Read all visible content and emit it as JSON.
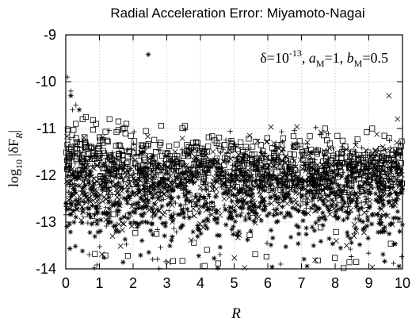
{
  "chart_data": {
    "type": "scatter",
    "title": "Radial Acceleration Error: Miyamoto-Nagai",
    "xlabel": "R",
    "ylabel_base": "log",
    "ylabel_sub": "10",
    "ylabel_abs": "|δF",
    "ylabel_abs_sub": "R",
    "ylabel_close": "|",
    "annotation": {
      "delta": "δ=10",
      "delta_exp": "-13",
      "a_sep": ", ",
      "a": "a",
      "a_sub": "M",
      "a_val": "=1, ",
      "b": "b",
      "b_sub": "M",
      "b_val": "=0.5"
    },
    "xlim": [
      0,
      10
    ],
    "ylim": [
      -14,
      -9
    ],
    "x_ticks": [
      0,
      1,
      2,
      3,
      4,
      5,
      6,
      7,
      8,
      9,
      10
    ],
    "x_tick_labels": [
      "0",
      "1",
      "2",
      "3",
      "4",
      "5",
      "6",
      "7",
      "8",
      "9",
      "10"
    ],
    "y_ticks": [
      -14,
      -13,
      -12,
      -11,
      -10,
      -9
    ],
    "y_tick_labels": [
      "-14",
      "-13",
      "-12",
      "-11",
      "-10",
      "-9"
    ],
    "grid": true,
    "legend": "none",
    "series": [
      {
        "marker": "square",
        "band": {
          "center_start": -11.6,
          "center_end": -11.9,
          "spread": 0.55,
          "outlier_low": -14.0,
          "outlier_frac": 0.08
        },
        "outliers": [
          [
            0.3,
            -10.9
          ],
          [
            0.5,
            -10.8
          ],
          [
            0.9,
            -10.9
          ],
          [
            1.3,
            -10.8
          ],
          [
            1.8,
            -10.9
          ],
          [
            7.7,
            -11.0
          ],
          [
            9.1,
            -11.0
          ]
        ]
      },
      {
        "marker": "x",
        "band": {
          "center_start": -12.2,
          "center_end": -12.0,
          "spread": 0.7,
          "outlier_low": -14.0,
          "outlier_frac": 0.08
        },
        "outliers": [
          [
            9.85,
            -10.8
          ],
          [
            9.6,
            -10.3
          ]
        ]
      },
      {
        "marker": "plus",
        "band": {
          "center_start": -12.0,
          "center_end": -12.0,
          "spread": 0.65,
          "outlier_low": -14.0,
          "outlier_frac": 0.08
        },
        "outliers": [
          [
            0.05,
            -9.9
          ],
          [
            0.15,
            -10.2
          ],
          [
            0.3,
            -10.5
          ],
          [
            0.2,
            -10.6
          ]
        ]
      },
      {
        "marker": "asterisk",
        "band": {
          "center_start": -12.6,
          "center_end": -12.5,
          "spread": 0.7,
          "outlier_low": -14.0,
          "outlier_frac": 0.08
        },
        "outliers": [
          [
            2.45,
            -9.42
          ],
          [
            0.15,
            -10.3
          ],
          [
            0.4,
            -10.6
          ]
        ]
      }
    ],
    "points_per_series": 650
  }
}
